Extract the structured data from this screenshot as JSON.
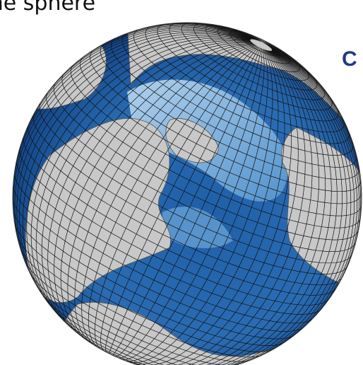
{
  "caption": "the sphere",
  "panel_label": "C"
}
